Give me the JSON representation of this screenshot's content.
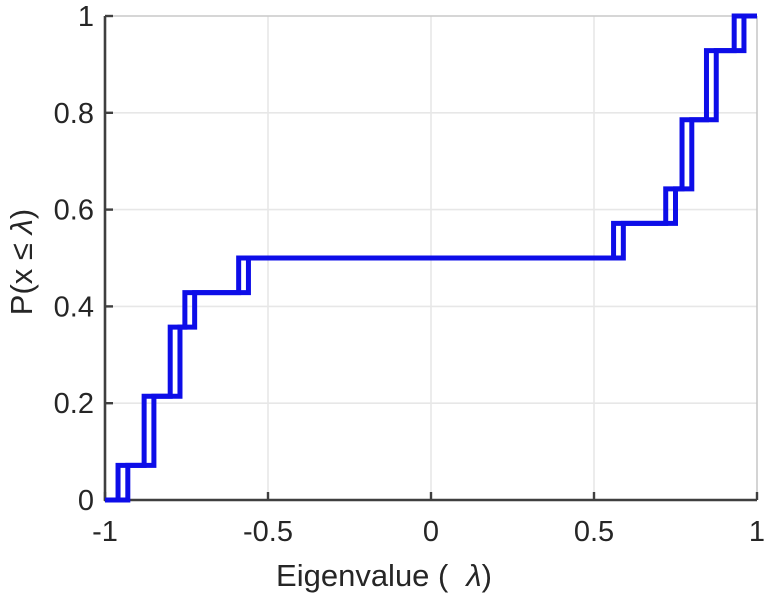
{
  "figure": {
    "background": "#ffffff",
    "axes_color": "#3f3f3f",
    "box_color": "#c9c9c9",
    "grid_color": "#e7e7e7",
    "tick_label_color": "#262626",
    "line_color": "#0d0de8"
  },
  "xlabel": {
    "prefix": "Eigenvalue (",
    "lambda": "λ",
    "suffix": ")"
  },
  "ylabel": {
    "prefix": "P(x ",
    "leq": "≤ ",
    "lambda": "λ",
    "suffix": ")"
  },
  "chart_data": {
    "type": "line",
    "subtype": "empirical-cdf-staircase",
    "title": "",
    "xlabel": "Eigenvalue ( λ)",
    "ylabel": "P(x ≤ λ)",
    "xlim": [
      -1,
      1
    ],
    "ylim": [
      0,
      1
    ],
    "x_ticks": [
      -1,
      -0.5,
      0,
      0.5,
      1
    ],
    "x_tick_labels": [
      "-1",
      "-0.5",
      "0",
      "0.5",
      "1"
    ],
    "y_ticks": [
      0,
      0.2,
      0.4,
      0.6,
      0.8,
      1
    ],
    "y_tick_labels": [
      "0",
      "0.2",
      "0.4",
      "0.6",
      "0.8",
      "1"
    ],
    "grid": true,
    "legend": false,
    "n_points_per_series": 14,
    "cdf_step": 0.0714,
    "cdf_levels": [
      0.0714,
      0.2143,
      0.3571,
      0.4286,
      0.5,
      0.5714,
      0.6429,
      0.7857,
      0.9286,
      1.0
    ],
    "series": [
      {
        "name": "ecdf-staircase-1",
        "eigenvalues": [
          -0.96,
          -0.88,
          -0.88,
          -0.8,
          -0.8,
          -0.755,
          -0.59,
          0.56,
          0.72,
          0.77,
          0.77,
          0.845,
          0.845,
          0.93
        ]
      },
      {
        "name": "ecdf-staircase-2",
        "eigenvalues": [
          -0.93,
          -0.85,
          -0.85,
          -0.77,
          -0.77,
          -0.725,
          -0.56,
          0.59,
          0.75,
          0.8,
          0.8,
          0.875,
          0.875,
          0.96
        ]
      }
    ],
    "line_width": 5
  }
}
